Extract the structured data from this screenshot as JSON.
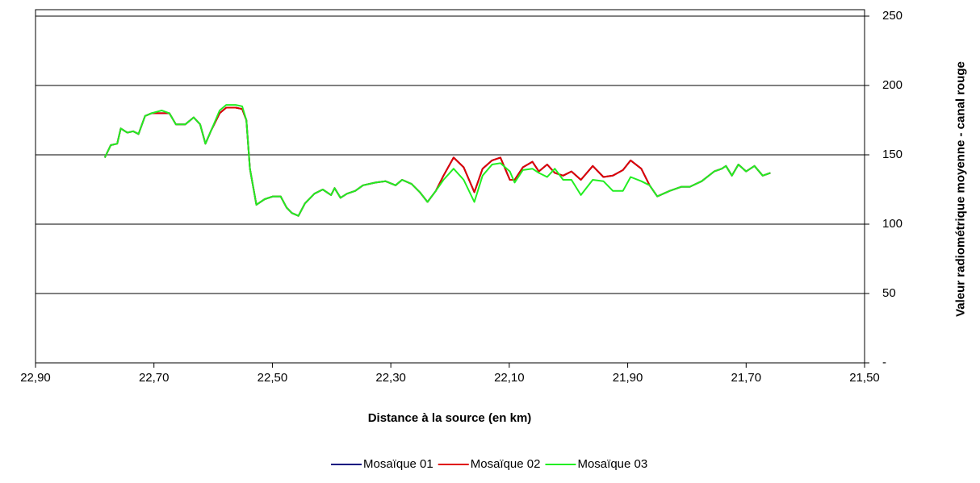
{
  "chart_data": {
    "type": "line",
    "xlabel": "Distance à la source (en km)",
    "ylabel": "Valeur radiométrique moyenne - canal rouge",
    "xlim": [
      22.9,
      21.5
    ],
    "xticks": [
      {
        "value": 22.9,
        "label": "22,90"
      },
      {
        "value": 22.7,
        "label": "22,70"
      },
      {
        "value": 22.5,
        "label": "22,50"
      },
      {
        "value": 22.3,
        "label": "22,30"
      },
      {
        "value": 22.1,
        "label": "22,10"
      },
      {
        "value": 21.9,
        "label": "21,90"
      },
      {
        "value": 21.7,
        "label": "21,70"
      },
      {
        "value": 21.5,
        "label": "21,50"
      }
    ],
    "ylim": [
      0,
      250
    ],
    "yticks": [
      {
        "value": 0,
        "label": "-"
      },
      50,
      100,
      150,
      200,
      250
    ],
    "grid": true,
    "legend": "bottom",
    "x": [
      22.783,
      22.773,
      22.762,
      22.756,
      22.745,
      22.735,
      22.726,
      22.715,
      22.704,
      22.687,
      22.674,
      22.663,
      22.647,
      22.633,
      22.622,
      22.613,
      22.603,
      22.589,
      22.578,
      22.562,
      22.551,
      22.544,
      22.538,
      22.527,
      22.513,
      22.499,
      22.486,
      22.476,
      22.467,
      22.456,
      22.445,
      22.429,
      22.415,
      22.401,
      22.395,
      22.385,
      22.374,
      22.36,
      22.347,
      22.326,
      22.309,
      22.292,
      22.281,
      22.265,
      22.251,
      22.238,
      22.224,
      22.211,
      22.194,
      22.177,
      22.159,
      22.145,
      22.129,
      22.115,
      22.099,
      22.091,
      22.077,
      22.061,
      22.05,
      22.036,
      22.023,
      22.009,
      21.995,
      21.979,
      21.959,
      21.941,
      21.925,
      21.908,
      21.895,
      21.877,
      21.863,
      21.85,
      21.829,
      21.809,
      21.795,
      21.775,
      21.754,
      21.741,
      21.734,
      21.724,
      21.713,
      21.7,
      21.686,
      21.672,
      21.659
    ],
    "series": [
      {
        "name": "Mosaïque 01",
        "color": "#000080",
        "values": [
          148,
          157,
          158,
          169,
          166,
          167,
          165,
          178,
          180,
          180,
          180,
          172,
          172,
          177,
          172,
          158,
          168,
          180,
          184,
          184,
          183,
          175,
          140,
          114,
          118,
          120,
          120,
          112,
          108,
          106,
          115,
          122,
          125,
          121,
          126,
          119,
          122,
          124,
          128,
          130,
          131,
          128,
          132,
          129,
          123,
          116,
          124,
          135,
          148,
          141,
          123,
          140,
          146,
          148,
          132,
          132,
          141,
          145,
          138,
          143,
          137,
          135,
          138,
          132,
          142,
          134,
          135,
          139,
          146,
          140,
          128,
          120,
          124,
          127,
          127,
          131,
          138,
          140,
          142,
          135,
          143,
          138,
          142,
          135,
          137
        ]
      },
      {
        "name": "Mosaïque 02",
        "color": "#e00000",
        "values": [
          148,
          157,
          158,
          169,
          166,
          167,
          165,
          178,
          180,
          180,
          180,
          172,
          172,
          177,
          172,
          158,
          168,
          180,
          184,
          184,
          183,
          175,
          140,
          114,
          118,
          120,
          120,
          112,
          108,
          106,
          115,
          122,
          125,
          121,
          126,
          119,
          122,
          124,
          128,
          130,
          131,
          128,
          132,
          129,
          123,
          116,
          124,
          135,
          148,
          141,
          123,
          140,
          146,
          148,
          132,
          132,
          141,
          145,
          138,
          143,
          137,
          135,
          138,
          132,
          142,
          134,
          135,
          139,
          146,
          140,
          128,
          120,
          124,
          127,
          127,
          131,
          138,
          140,
          142,
          135,
          143,
          138,
          142,
          135,
          137
        ]
      },
      {
        "name": "Mosaïque 03",
        "color": "#22ee22",
        "values": [
          148,
          157,
          158,
          169,
          166,
          167,
          165,
          178,
          180,
          182,
          180,
          172,
          172,
          177,
          172,
          158,
          168,
          182,
          186,
          186,
          185,
          175,
          140,
          114,
          118,
          120,
          120,
          112,
          108,
          106,
          115,
          122,
          125,
          121,
          126,
          119,
          122,
          124,
          128,
          130,
          131,
          128,
          132,
          129,
          123,
          116,
          124,
          132,
          140,
          132,
          116,
          135,
          143,
          144,
          138,
          130,
          139,
          140,
          137,
          134,
          140,
          132,
          132,
          121,
          132,
          131,
          124,
          124,
          134,
          131,
          128,
          120,
          124,
          127,
          127,
          131,
          138,
          140,
          142,
          135,
          143,
          138,
          142,
          135,
          137
        ]
      }
    ]
  }
}
